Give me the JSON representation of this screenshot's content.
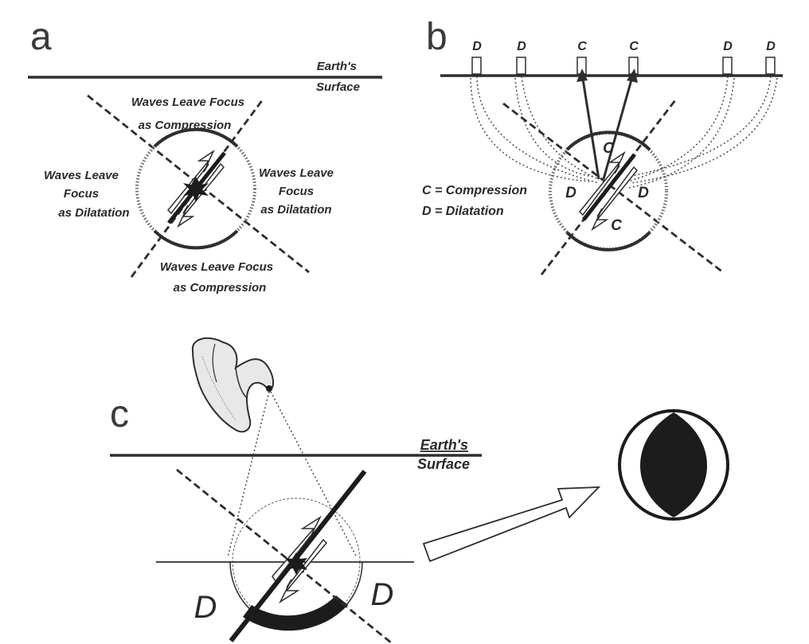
{
  "panel_a": {
    "letter": "a",
    "surface_label_1": "Earth's",
    "surface_label_2": "Surface",
    "top_label_1": "Waves Leave Focus",
    "top_label_2": "as Compression",
    "left_label_1": "Waves Leave",
    "left_label_2": "Focus",
    "left_label_3": "as Dilatation",
    "right_label_1": "Waves Leave",
    "right_label_2": "Focus",
    "right_label_3": "as Dilatation",
    "bottom_label_1": "Waves Leave Focus",
    "bottom_label_2": "as Compression"
  },
  "panel_b": {
    "letter": "b",
    "stations": [
      "D",
      "D",
      "C",
      "C",
      "D",
      "D"
    ],
    "quadrant_top": "C",
    "quadrant_bottom": "C",
    "quadrant_left": "D",
    "quadrant_right": "D",
    "legend_compression": "C = Compression",
    "legend_dilatation": "D = Dilatation"
  },
  "panel_c": {
    "letter": "c",
    "surface_label_1": "Earth's",
    "surface_label_2": "Surface",
    "quadrant_left": "D",
    "quadrant_right": "D"
  },
  "colors": {
    "ink": "#2e2e2e",
    "beachball_fill": "#1c1c1c"
  }
}
